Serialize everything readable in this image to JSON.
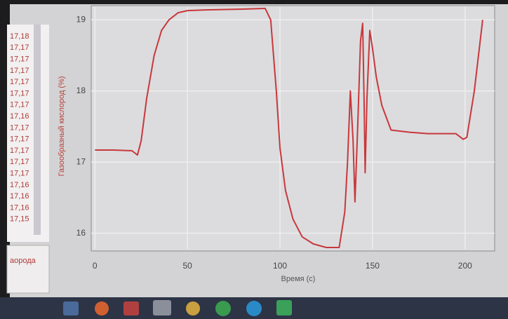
{
  "chart_data": {
    "type": "line",
    "ylabel": "Газообразный кислород (%)",
    "xlabel": "Время (с)",
    "x": [
      0,
      10,
      20,
      23,
      25,
      28,
      32,
      36,
      40,
      45,
      50,
      60,
      80,
      92,
      95,
      98,
      100,
      103,
      107,
      112,
      118,
      125,
      132,
      135,
      136.5,
      138,
      139.5,
      140.5,
      142,
      143.5,
      144.7,
      145.5,
      146,
      147,
      148.5,
      150,
      152,
      155,
      160,
      170,
      180,
      195,
      199,
      201,
      205,
      209.5
    ],
    "values": [
      17.17,
      17.17,
      17.16,
      17.1,
      17.3,
      17.9,
      18.5,
      18.85,
      19.0,
      19.1,
      19.13,
      19.14,
      19.15,
      19.16,
      19.0,
      18.0,
      17.2,
      16.6,
      16.2,
      15.95,
      15.85,
      15.8,
      15.8,
      16.3,
      17.0,
      18.0,
      17.3,
      16.44,
      17.5,
      18.7,
      18.95,
      17.8,
      16.85,
      17.9,
      18.85,
      18.6,
      18.2,
      17.8,
      17.45,
      17.42,
      17.4,
      17.4,
      17.32,
      17.35,
      18.0,
      19.0
    ],
    "color": "#c8383c",
    "xlim": [
      -2,
      216
    ],
    "ylim": [
      15.78,
      19.18
    ],
    "xticks": [
      0,
      50,
      100,
      150,
      200
    ],
    "yticks": [
      16,
      17,
      18,
      19
    ],
    "grid": true
  },
  "side_panel": {
    "values": [
      "17,18",
      "17,17",
      "17,17",
      "17,17",
      "17,17",
      "17,17",
      "17,17",
      "17,16",
      "17,17",
      "17,17",
      "17,17",
      "17,17",
      "17,17",
      "17,16",
      "17,16",
      "17,16",
      "17,15"
    ],
    "label": "аорода"
  }
}
